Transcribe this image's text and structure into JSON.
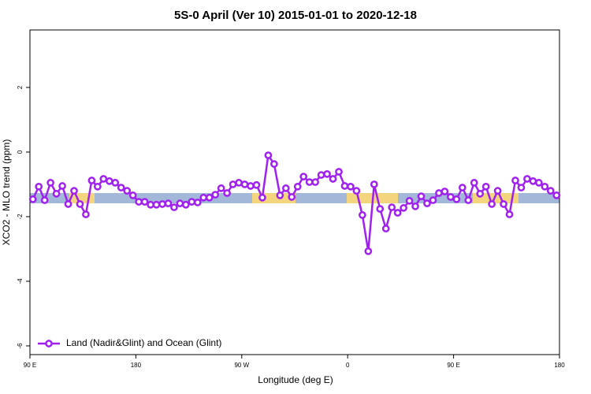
{
  "chart_data": {
    "type": "line",
    "title": "5S-0 April (Ver 10)   2015-01-01 to 2020-12-18",
    "x_label": "Longitude (deg E)",
    "y_label": "XCO2 - MLO trend (ppm)",
    "x": [
      92.5,
      97.5,
      102.5,
      107.5,
      112.5,
      117.5,
      122.5,
      127.5,
      132.5,
      137.5,
      142.5,
      147.5,
      152.5,
      157.5,
      162.5,
      167.5,
      172.5,
      177.5,
      182.5,
      187.5,
      192.5,
      197.5,
      202.5,
      207.5,
      212.5,
      217.5,
      222.5,
      227.5,
      232.5,
      237.5,
      242.5,
      247.5,
      252.5,
      257.5,
      262.5,
      267.5,
      272.5,
      277.5,
      282.5,
      287.5,
      292.5,
      297.5,
      302.5,
      307.5,
      312.5,
      317.5,
      322.5,
      327.5,
      332.5,
      337.5,
      342.5,
      347.5,
      352.5,
      357.5,
      362.5,
      367.5,
      372.5,
      377.5,
      382.5,
      387.5,
      392.5,
      397.5,
      402.5,
      407.5,
      412.5,
      417.5,
      422.5,
      427.5,
      432.5,
      437.5,
      442.5,
      447.5,
      452.5,
      457.5,
      462.5,
      467.5,
      472.5,
      477.5,
      482.5,
      487.5,
      492.5,
      497.5,
      502.5,
      507.5,
      512.5,
      517.5,
      522.5,
      527.5,
      532.5,
      537.5
    ],
    "series": [
      {
        "name": "Land (Nadir&Glint) and Ocean (Glint)",
        "color": "#a020f0",
        "values": [
          -1.46,
          -1.07,
          -1.49,
          -0.95,
          -1.29,
          -1.05,
          -1.61,
          -1.2,
          -1.61,
          -1.93,
          -0.88,
          -1.07,
          -0.83,
          -0.9,
          -0.95,
          -1.1,
          -1.2,
          -1.34,
          -1.54,
          -1.54,
          -1.63,
          -1.63,
          -1.61,
          -1.59,
          -1.71,
          -1.59,
          -1.63,
          -1.54,
          -1.56,
          -1.41,
          -1.41,
          -1.32,
          -1.12,
          -1.27,
          -1.0,
          -0.95,
          -1.0,
          -1.05,
          -1.02,
          -1.41,
          -0.1,
          -0.37,
          -1.34,
          -1.12,
          -1.39,
          -1.07,
          -0.76,
          -0.93,
          -0.93,
          -0.71,
          -0.68,
          -0.83,
          -0.61,
          -1.05,
          -1.07,
          -1.2,
          -1.95,
          -3.07,
          -1.0,
          -1.76,
          -2.37,
          -1.71,
          -1.88,
          -1.73,
          -1.51,
          -1.68,
          -1.37,
          -1.59,
          -1.49,
          -1.27,
          -1.22,
          -1.39,
          -1.46,
          -1.1,
          -1.49,
          -0.95,
          -1.29,
          -1.07,
          -1.61,
          -1.2,
          -1.61,
          -1.93,
          -0.88,
          -1.1,
          -0.83,
          -0.9,
          -0.95,
          -1.07,
          -1.2,
          -1.34
        ]
      }
    ],
    "xlim": [
      90,
      540
    ],
    "xticks": [
      {
        "value": 90,
        "label": "90 E"
      },
      180,
      {
        "value": 270,
        "label": "90 W"
      },
      {
        "value": 360,
        "label": "0"
      },
      {
        "value": 450,
        "label": "90 E"
      },
      {
        "value": 540,
        "label": "180"
      }
    ],
    "ylim": [
      -6.27,
      3.78
    ],
    "yticks": [
      -6,
      -4,
      -2,
      0,
      2
    ],
    "legend": "bottom-left"
  }
}
